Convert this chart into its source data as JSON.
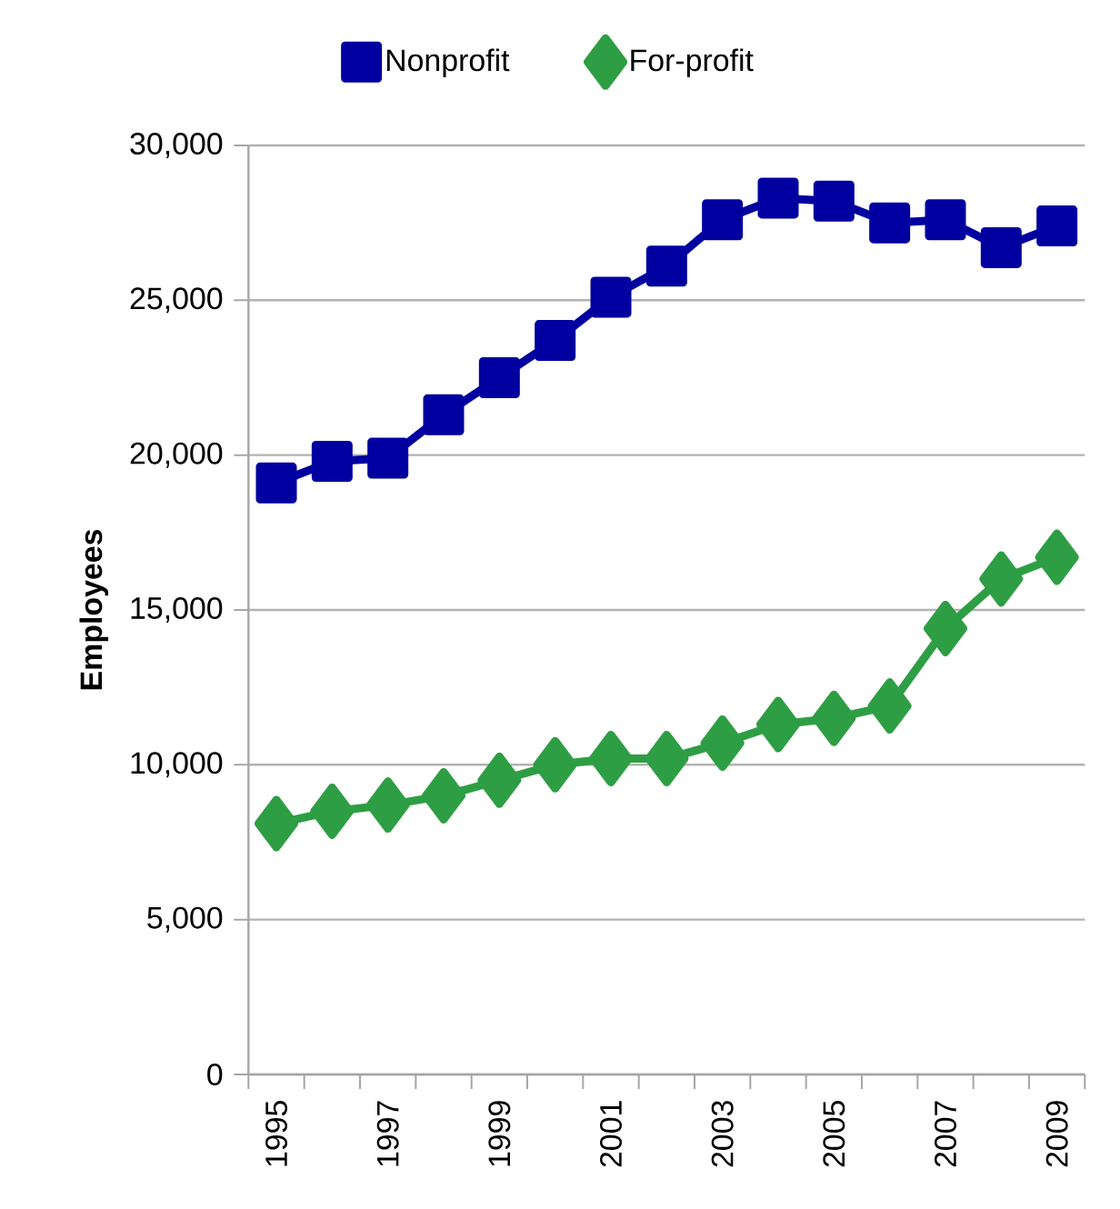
{
  "chart_data": {
    "type": "line",
    "ylabel": "Employees",
    "categories": [
      "1995",
      null,
      "1997",
      null,
      "1999",
      null,
      "2001",
      null,
      "2003",
      null,
      "2005",
      null,
      "2007",
      null,
      "2009"
    ],
    "series": [
      {
        "name": "Nonprofit",
        "color": "#0000a0",
        "marker": "square",
        "values": [
          19100,
          19800,
          19900,
          21300,
          22500,
          23700,
          25100,
          26100,
          27600,
          28300,
          28200,
          27500,
          27600,
          26700,
          27400
        ]
      },
      {
        "name": "For-profit",
        "color": "#2e9e44",
        "marker": "diamond",
        "values": [
          8100,
          8500,
          8700,
          9000,
          9500,
          10000,
          10200,
          10200,
          10700,
          11300,
          11500,
          11900,
          14400,
          16000,
          16700
        ]
      }
    ],
    "ylim": [
      0,
      30000
    ],
    "yticks": [
      {
        "value": 0,
        "label": "0"
      },
      {
        "value": 5000,
        "label": "5,000"
      },
      {
        "value": 10000,
        "label": "10,000"
      },
      {
        "value": 15000,
        "label": "15,000"
      },
      {
        "value": 20000,
        "label": "20,000"
      },
      {
        "value": 25000,
        "label": "25,000"
      },
      {
        "value": 30000,
        "label": "30,000"
      }
    ],
    "grid": "y",
    "legend": "top",
    "line_style": "solid"
  }
}
